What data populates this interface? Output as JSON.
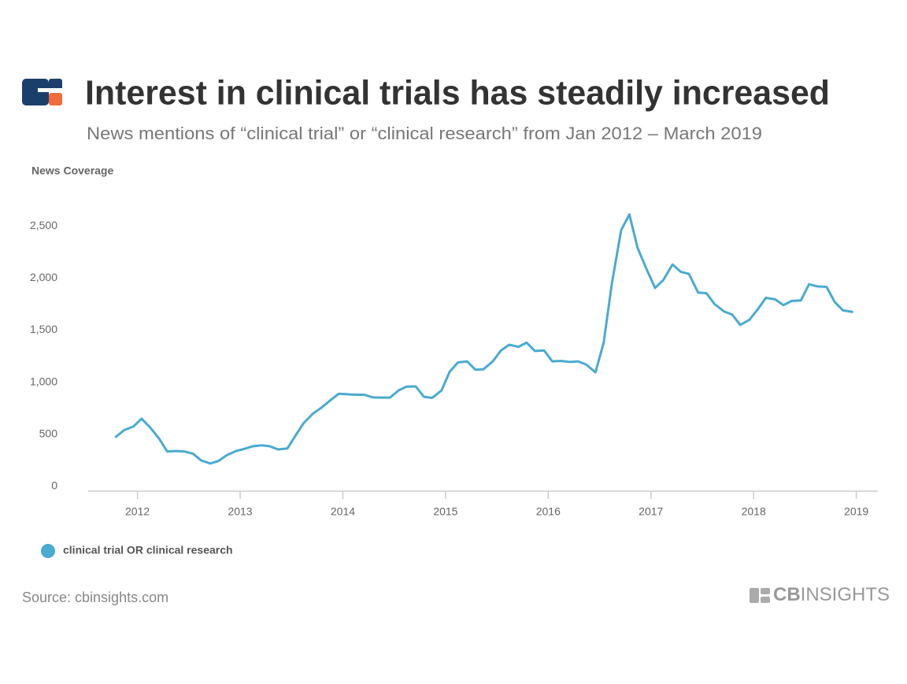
{
  "chart_data": {
    "type": "line",
    "title": "Interest in clinical trials has steadily increased",
    "subtitle": "News mentions of “clinical trial” or “clinical research” from Jan 2012 – March 2019",
    "y_label": "News Coverage",
    "x": [
      2011.79,
      2011.87,
      2011.96,
      2012.04,
      2012.12,
      2012.21,
      2012.29,
      2012.37,
      2012.46,
      2012.54,
      2012.62,
      2012.71,
      2012.79,
      2012.87,
      2012.96,
      2013.04,
      2013.12,
      2013.21,
      2013.29,
      2013.37,
      2013.46,
      2013.54,
      2013.62,
      2013.71,
      2013.79,
      2013.87,
      2013.96,
      2014.04,
      2014.12,
      2014.21,
      2014.29,
      2014.37,
      2014.46,
      2014.54,
      2014.62,
      2014.71,
      2014.79,
      2014.87,
      2014.96,
      2015.04,
      2015.12,
      2015.21,
      2015.29,
      2015.37,
      2015.46,
      2015.54,
      2015.62,
      2015.71,
      2015.79,
      2015.87,
      2015.96,
      2016.04,
      2016.12,
      2016.21,
      2016.29,
      2016.37,
      2016.46,
      2016.54,
      2016.62,
      2016.71,
      2016.79,
      2016.87,
      2016.96,
      2017.04,
      2017.12,
      2017.21,
      2017.29,
      2017.37,
      2017.46,
      2017.54,
      2017.62,
      2017.71,
      2017.79,
      2017.87,
      2017.96,
      2018.04,
      2018.12,
      2018.21,
      2018.29,
      2018.37,
      2018.46,
      2018.54,
      2018.62,
      2018.71,
      2018.79,
      2018.87,
      2018.96
    ],
    "series": [
      {
        "name": "clinical trial OR clinical research",
        "color": "#4aaad0",
        "values": [
          476,
          540,
          575,
          650,
          570,
          460,
          335,
          340,
          335,
          315,
          250,
          220,
          245,
          300,
          340,
          360,
          385,
          395,
          385,
          355,
          365,
          490,
          610,
          700,
          755,
          820,
          890,
          885,
          880,
          880,
          855,
          853,
          853,
          920,
          958,
          960,
          860,
          850,
          920,
          1100,
          1190,
          1200,
          1120,
          1125,
          1200,
          1305,
          1360,
          1340,
          1380,
          1300,
          1305,
          1200,
          1205,
          1195,
          1200,
          1170,
          1095,
          1380,
          1950,
          2460,
          2610,
          2290,
          2080,
          1905,
          1980,
          2130,
          2060,
          2040,
          1860,
          1855,
          1750,
          1680,
          1650,
          1550,
          1600,
          1700,
          1810,
          1795,
          1740,
          1780,
          1785,
          1940,
          1920,
          1915,
          1770,
          1690,
          1675
        ]
      }
    ],
    "xlim": [
      2011.52,
      2019.21
    ],
    "xticks": [
      2012,
      2013,
      2014,
      2015,
      2016,
      2017,
      2018,
      2019
    ],
    "ylim": [
      0,
      2780
    ],
    "yticks": [
      0,
      500,
      {
        "value": 1000,
        "label": "1,000"
      },
      {
        "value": 1500,
        "label": "1,500"
      },
      {
        "value": 2000,
        "label": "2,000"
      },
      {
        "value": 2500,
        "label": "2,500"
      }
    ],
    "grid": false,
    "source": "Source: cbinsights.com",
    "brand_prefix": "CB",
    "brand_name": "INSIGHTS"
  }
}
